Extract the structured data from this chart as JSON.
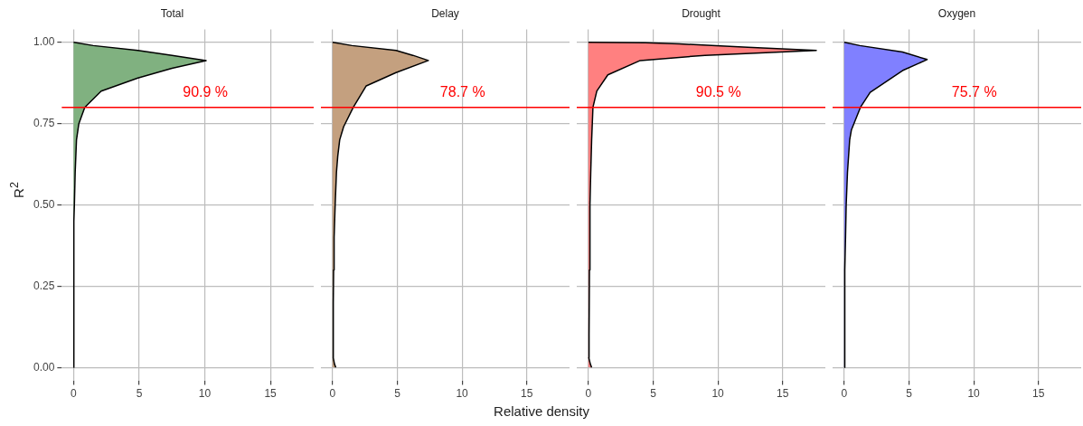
{
  "chart_data": [
    {
      "type": "area",
      "orientation": "horizontal",
      "title": "Total",
      "ylabel": "R$^{2}$",
      "x": [
        0,
        0.1,
        0.2,
        0.3,
        0.4,
        0.45,
        0.5,
        0.6,
        0.7,
        0.75,
        0.8,
        0.85,
        0.89,
        0.92,
        0.944,
        0.96,
        0.975,
        0.99,
        1.0
      ],
      "series": [
        {
          "color": "#80b180",
          "values": [
            0,
            0,
            0,
            0.02,
            0.03,
            0.04,
            0.06,
            0.12,
            0.22,
            0.4,
            0.85,
            2.1,
            4.9,
            7.5,
            10.1,
            7.5,
            4.9,
            1.5,
            0
          ]
        }
      ],
      "xlim": [
        -0.9,
        18.3
      ],
      "xticks": [
        0,
        5,
        10,
        15
      ],
      "ylim": [
        -0.04,
        1.04
      ],
      "yticks": [
        {
          "value": 0,
          "label": "0.00"
        },
        {
          "value": 0.25,
          "label": "0.25"
        },
        {
          "value": 0.5,
          "label": "0.50"
        },
        {
          "value": 0.75,
          "label": "0.75"
        },
        {
          "value": 1,
          "label": "1.00"
        }
      ],
      "grid": true,
      "ref_lines": [
        {
          "axis": "y",
          "value": 0.8,
          "color": "#ff0000"
        }
      ],
      "annotations": [
        "90.9 %"
      ]
    },
    {
      "type": "area",
      "orientation": "horizontal",
      "title": "Delay",
      "xlabel": "Relative density",
      "x": [
        0,
        0.01,
        0.03,
        0.1,
        0.2,
        0.3,
        0.4,
        0.5,
        0.6,
        0.65,
        0.7,
        0.74,
        0.8,
        0.866,
        0.907,
        0.944,
        0.96,
        0.975,
        0.99,
        1.0
      ],
      "series": [
        {
          "color": "#c4a07f",
          "values": [
            0.25,
            0.15,
            0.05,
            0.05,
            0.06,
            0.08,
            0.12,
            0.2,
            0.3,
            0.4,
            0.55,
            0.85,
            1.6,
            2.6,
            4.9,
            7.4,
            6.2,
            4.9,
            1.5,
            0
          ]
        }
      ],
      "xlim": [
        -0.9,
        18.3
      ],
      "xticks": [
        0,
        5,
        10,
        15
      ],
      "ylim": [
        -0.04,
        1.04
      ],
      "yticks": [
        0,
        0.25,
        0.5,
        0.75,
        1
      ],
      "grid": true,
      "tick_labels": "x",
      "ref_lines": [
        {
          "axis": "y",
          "value": 0.8,
          "color": "#ff0000"
        }
      ],
      "annotations": [
        "78.7 %"
      ]
    },
    {
      "type": "area",
      "orientation": "horizontal",
      "title": "Drought",
      "x": [
        0,
        0.01,
        0.03,
        0.1,
        0.3,
        0.5,
        0.6,
        0.7,
        0.8,
        0.85,
        0.9,
        0.944,
        0.96,
        0.975,
        0.985,
        0.995,
        0.999,
        1.0
      ],
      "series": [
        {
          "color": "#ff8080",
          "values": [
            0.25,
            0.15,
            0.03,
            0.05,
            0.08,
            0.12,
            0.18,
            0.25,
            0.35,
            0.65,
            1.5,
            4.0,
            9,
            17.6,
            12.3,
            7,
            4.4,
            0
          ]
        }
      ],
      "xlim": [
        -0.9,
        18.3
      ],
      "xticks": [
        0,
        5,
        10,
        15
      ],
      "ylim": [
        -0.04,
        1.04
      ],
      "yticks": [
        0,
        0.25,
        0.5,
        0.75,
        1
      ],
      "grid": true,
      "tick_labels": "x",
      "ref_lines": [
        {
          "axis": "y",
          "value": 0.8,
          "color": "#ff0000"
        }
      ],
      "annotations": [
        "90.5 %"
      ]
    },
    {
      "type": "area",
      "orientation": "horizontal",
      "title": "Oxygen",
      "x": [
        0,
        0.1,
        0.2,
        0.3,
        0.4,
        0.5,
        0.6,
        0.7,
        0.73,
        0.8,
        0.846,
        0.913,
        0.947,
        0.97,
        0.99,
        1.0
      ],
      "series": [
        {
          "color": "#8080ff",
          "values": [
            0.02,
            0.03,
            0.04,
            0.06,
            0.1,
            0.15,
            0.25,
            0.42,
            0.55,
            1.25,
            2.0,
            4.5,
            6.4,
            4.5,
            1.2,
            0
          ]
        }
      ],
      "xlim": [
        -0.9,
        18.3
      ],
      "xticks": [
        0,
        5,
        10,
        15
      ],
      "ylim": [
        -0.04,
        1.04
      ],
      "yticks": [
        0,
        0.25,
        0.5,
        0.75,
        1
      ],
      "grid": true,
      "tick_labels": "x",
      "ref_lines": [
        {
          "axis": "y",
          "value": 0.8,
          "color": "#ff0000"
        }
      ],
      "annotations": [
        "75.7 %"
      ]
    }
  ]
}
